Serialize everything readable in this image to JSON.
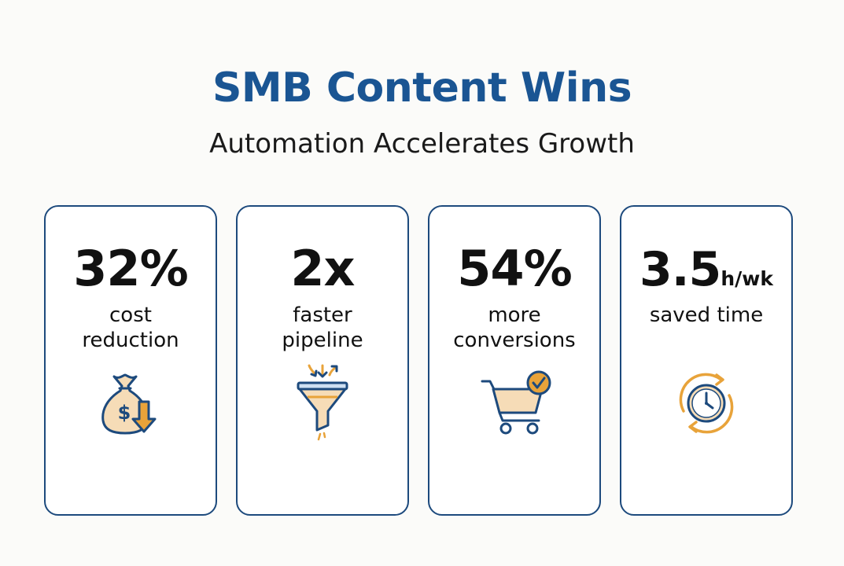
{
  "header": {
    "title": "SMB Content Wins",
    "subtitle": "Automation Accelerates Growth"
  },
  "cards": [
    {
      "stat": "32%",
      "label_line1": "cost",
      "label_line2": "reduction",
      "icon": "money-bag-down-arrow-icon"
    },
    {
      "stat": "2x",
      "label_line1": "faster",
      "label_line2": "pipeline",
      "icon": "funnel-icon"
    },
    {
      "stat": "54%",
      "label_line1": "more",
      "label_line2": "conversions",
      "icon": "shopping-cart-check-icon"
    },
    {
      "stat_value": "3.5",
      "stat_unit": "h/wk",
      "label_line1": "saved time",
      "icon": "clock-refresh-icon"
    }
  ],
  "colors": {
    "title": "#1a5593",
    "card_border": "#1d4a7d",
    "icon_outline": "#1d4a7d",
    "icon_accent": "#e8a33a",
    "icon_fill": "#f6dcb7"
  }
}
